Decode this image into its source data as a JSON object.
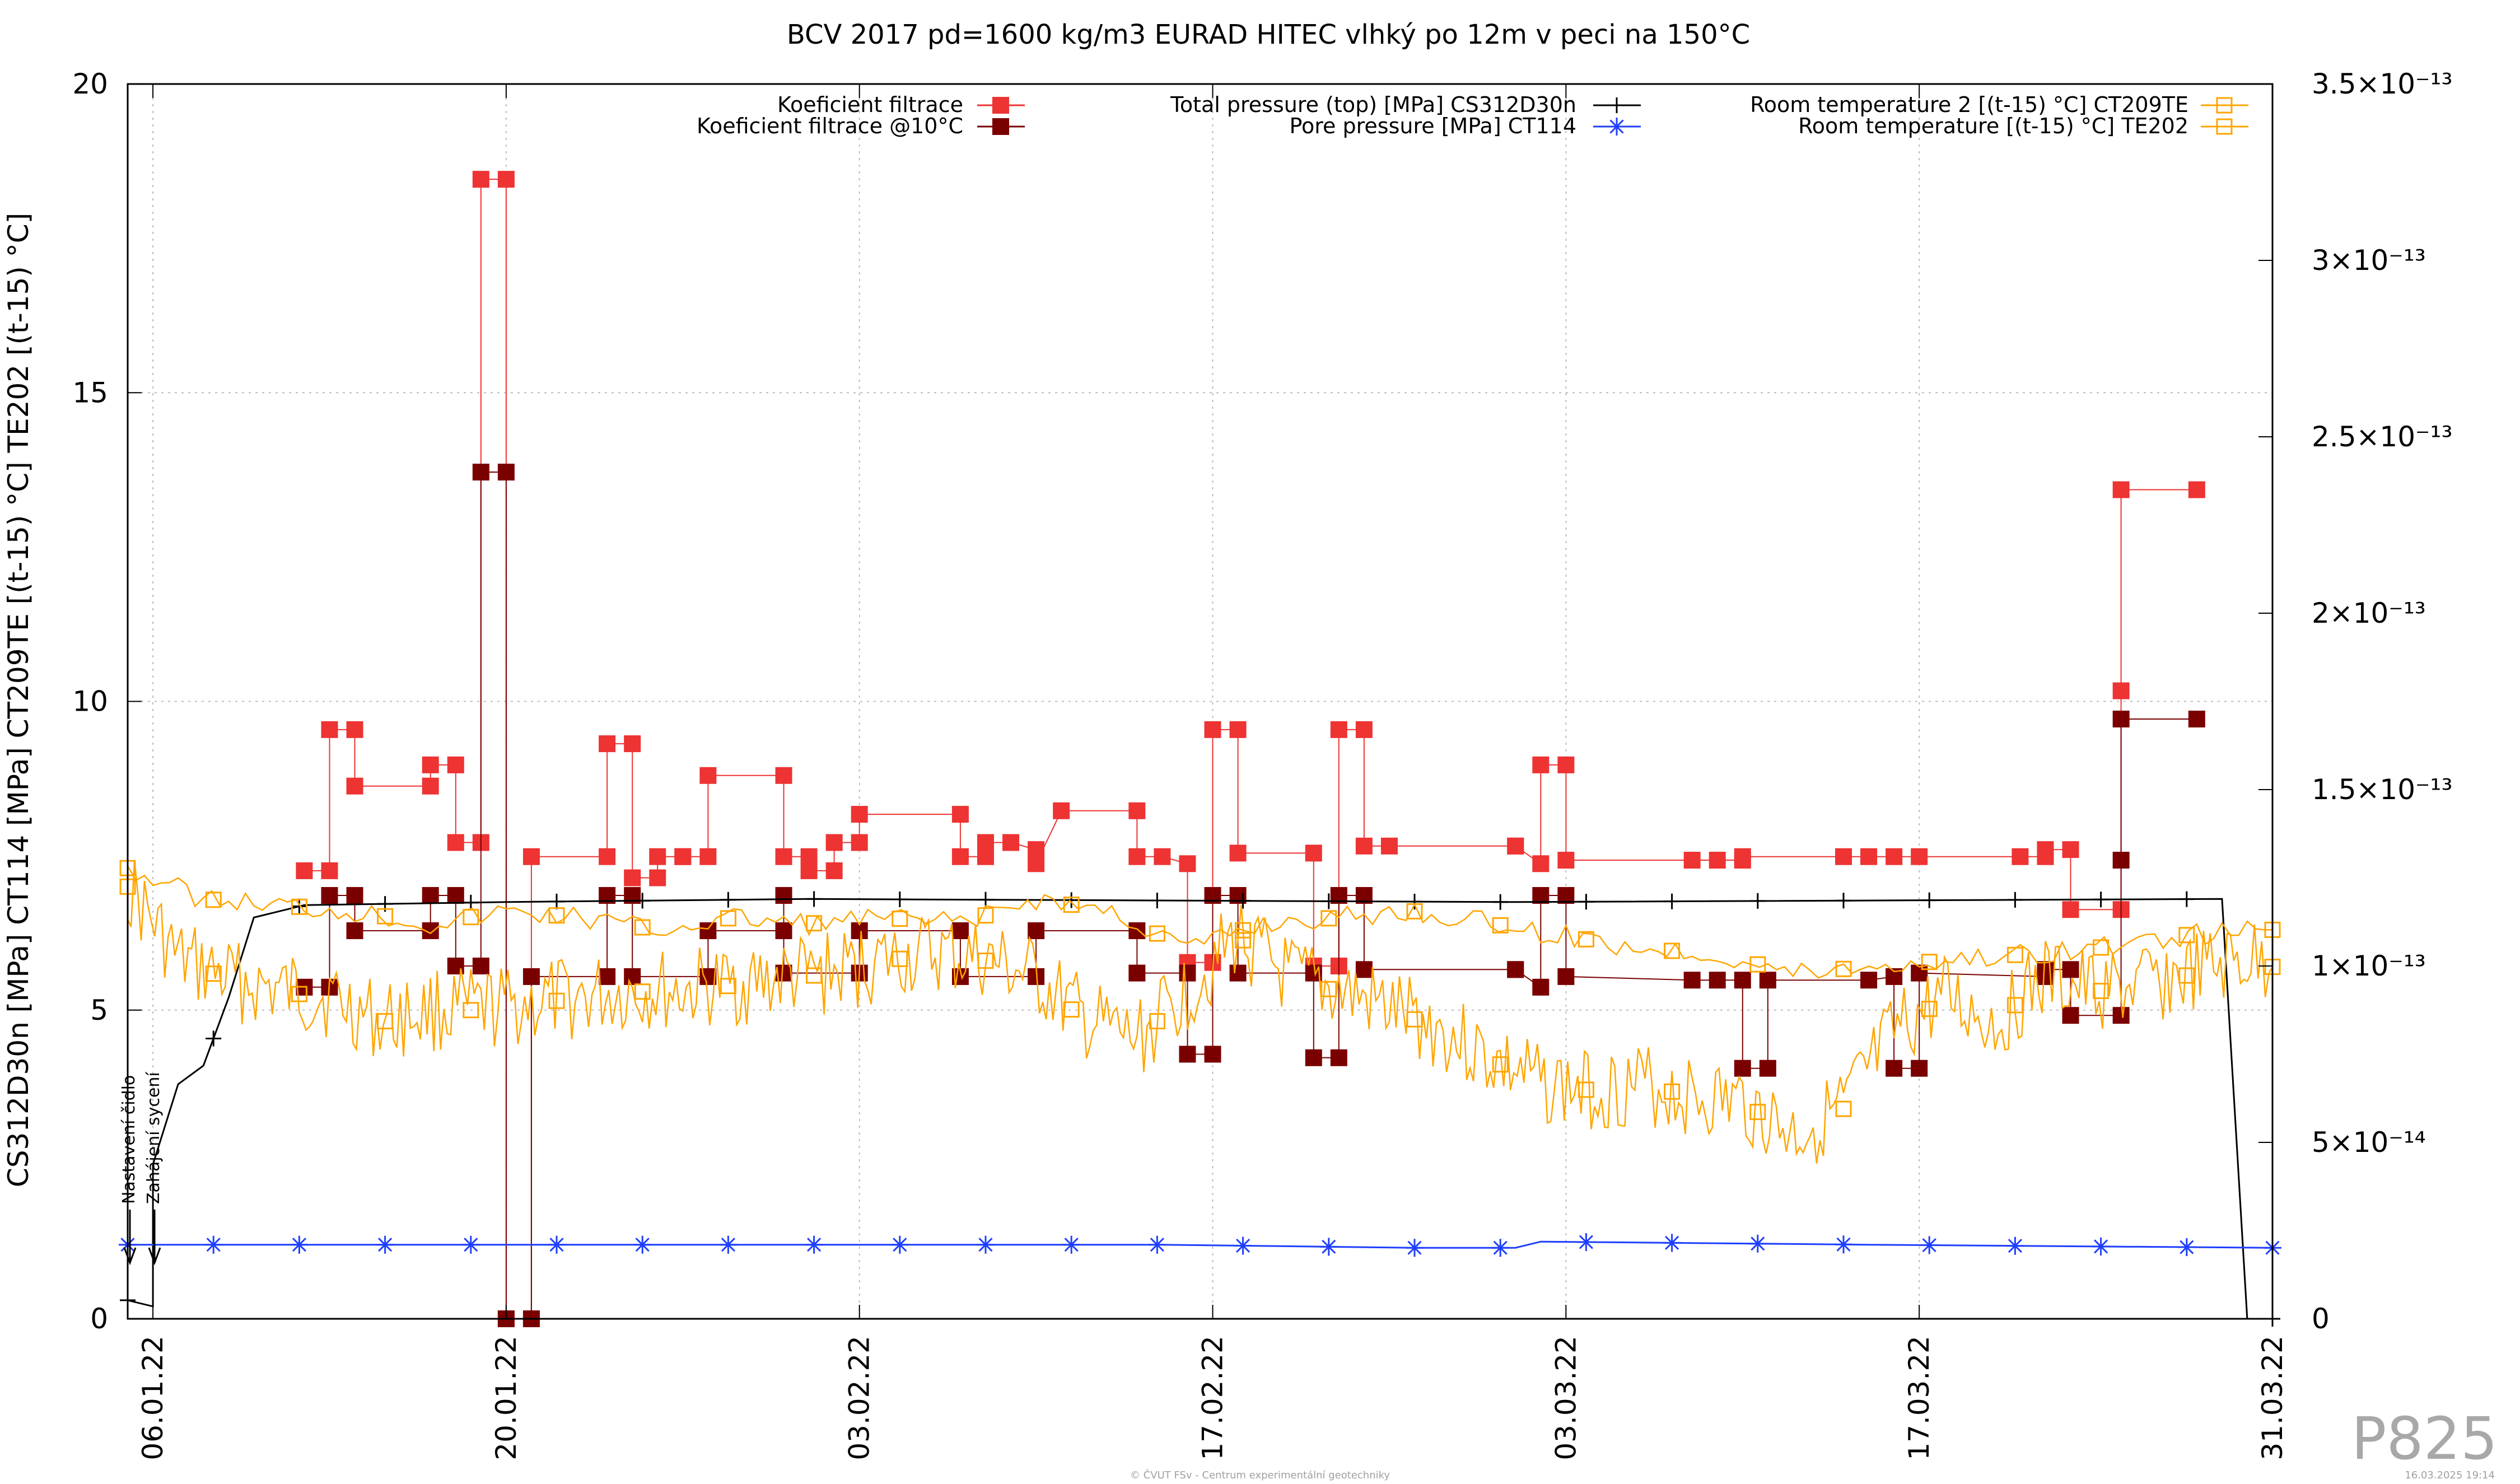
{
  "chart_data": {
    "type": "line",
    "title": "BCV 2017 pd=1600 kg/m3 EURAD HITEC vlhký po 12m v peci na 150°C",
    "ylabel_left": "CS312D30n [MPa] CT114 [MPa] CT209TE [(t-15) °C] TE202 [(t-15) °C]",
    "ylabel_right": "",
    "x_range": [
      "2022-01-05",
      "2022-03-31"
    ],
    "x_ticks": [
      "06.01.22",
      "20.01.22",
      "03.02.22",
      "17.02.22",
      "03.03.22",
      "17.03.22",
      "31.03.22"
    ],
    "y_left_range": [
      0,
      20
    ],
    "y_left_ticks": [
      "0",
      "5",
      "10",
      "15",
      "20"
    ],
    "y_right_range": [
      0,
      3.5e-13
    ],
    "y_right_ticks": [
      "0",
      "5×10⁻¹⁴",
      "1×10⁻¹³",
      "1.5×10⁻¹³",
      "2×10⁻¹³",
      "2.5×10⁻¹³",
      "3×10⁻¹³",
      "3.5×10⁻¹³"
    ],
    "grid": true,
    "legend_placement": "top",
    "annotations": [
      "Nastavení čidlo",
      "Zahájení sycení"
    ],
    "series": [
      {
        "name": "Koeficient filtrace",
        "axis": "right",
        "color": "#ee3333",
        "marker": "filled-square",
        "points": [
          [
            "2022-01-12",
            1.27e-13
          ],
          [
            "2022-01-13",
            1.27e-13
          ],
          [
            "2022-01-13",
            1.67e-13
          ],
          [
            "2022-01-14",
            1.67e-13
          ],
          [
            "2022-01-14",
            1.51e-13
          ],
          [
            "2022-01-17",
            1.51e-13
          ],
          [
            "2022-01-17",
            1.57e-13
          ],
          [
            "2022-01-18",
            1.57e-13
          ],
          [
            "2022-01-18",
            1.35e-13
          ],
          [
            "2022-01-19",
            1.35e-13
          ],
          [
            "2022-01-19",
            3.23e-13
          ],
          [
            "2022-01-20",
            3.23e-13
          ],
          [
            "2022-01-20",
            0
          ],
          [
            "2022-01-21",
            0
          ],
          [
            "2022-01-21",
            1.31e-13
          ],
          [
            "2022-01-24",
            1.31e-13
          ],
          [
            "2022-01-24",
            1.63e-13
          ],
          [
            "2022-01-25",
            1.63e-13
          ],
          [
            "2022-01-25",
            1.25e-13
          ],
          [
            "2022-01-26",
            1.25e-13
          ],
          [
            "2022-01-26",
            1.31e-13
          ],
          [
            "2022-01-27",
            1.31e-13
          ],
          [
            "2022-01-27",
            1.31e-13
          ],
          [
            "2022-01-28",
            1.31e-13
          ],
          [
            "2022-01-28",
            1.54e-13
          ],
          [
            "2022-01-31",
            1.54e-13
          ],
          [
            "2022-01-31",
            1.31e-13
          ],
          [
            "2022-02-01",
            1.31e-13
          ],
          [
            "2022-02-01",
            1.27e-13
          ],
          [
            "2022-02-02",
            1.27e-13
          ],
          [
            "2022-02-02",
            1.35e-13
          ],
          [
            "2022-02-03",
            1.35e-13
          ],
          [
            "2022-02-03",
            1.43e-13
          ],
          [
            "2022-02-07",
            1.43e-13
          ],
          [
            "2022-02-07",
            1.31e-13
          ],
          [
            "2022-02-08",
            1.31e-13
          ],
          [
            "2022-02-08",
            1.35e-13
          ],
          [
            "2022-02-09",
            1.35e-13
          ],
          [
            "2022-02-10",
            1.33e-13
          ],
          [
            "2022-02-10",
            1.29e-13
          ],
          [
            "2022-02-11",
            1.44e-13
          ],
          [
            "2022-02-14",
            1.44e-13
          ],
          [
            "2022-02-14",
            1.31e-13
          ],
          [
            "2022-02-15",
            1.31e-13
          ],
          [
            "2022-02-16",
            1.29e-13
          ],
          [
            "2022-02-16",
            1.01e-13
          ],
          [
            "2022-02-17",
            1.01e-13
          ],
          [
            "2022-02-17",
            1.67e-13
          ],
          [
            "2022-02-18",
            1.67e-13
          ],
          [
            "2022-02-18",
            1.32e-13
          ],
          [
            "2022-02-21",
            1.32e-13
          ],
          [
            "2022-02-21",
            1e-13
          ],
          [
            "2022-02-22",
            1e-13
          ],
          [
            "2022-02-22",
            1.67e-13
          ],
          [
            "2022-02-23",
            1.67e-13
          ],
          [
            "2022-02-23",
            1.34e-13
          ],
          [
            "2022-02-24",
            1.34e-13
          ],
          [
            "2022-03-01",
            1.34e-13
          ],
          [
            "2022-03-01",
            1.34e-13
          ],
          [
            "2022-03-02",
            1.29e-13
          ],
          [
            "2022-03-02",
            1.57e-13
          ],
          [
            "2022-03-03",
            1.57e-13
          ],
          [
            "2022-03-03",
            1.3e-13
          ],
          [
            "2022-03-08",
            1.3e-13
          ],
          [
            "2022-03-09",
            1.3e-13
          ],
          [
            "2022-03-10",
            1.3e-13
          ],
          [
            "2022-03-10",
            1.31e-13
          ],
          [
            "2022-03-14",
            1.31e-13
          ],
          [
            "2022-03-15",
            1.31e-13
          ],
          [
            "2022-03-16",
            1.31e-13
          ],
          [
            "2022-03-17",
            1.31e-13
          ],
          [
            "2022-03-21",
            1.31e-13
          ],
          [
            "2022-03-22",
            1.31e-13
          ],
          [
            "2022-03-22",
            1.33e-13
          ],
          [
            "2022-03-23",
            1.33e-13
          ],
          [
            "2022-03-23",
            1.16e-13
          ],
          [
            "2022-03-25",
            1.16e-13
          ],
          [
            "2022-03-25",
            1.78e-13
          ],
          [
            "2022-03-25",
            2.35e-13
          ],
          [
            "2022-03-28",
            2.35e-13
          ]
        ]
      },
      {
        "name": "Koeficient filtrace @10°C",
        "axis": "right",
        "color": "#7a0000",
        "marker": "filled-square",
        "points": [
          [
            "2022-01-12",
            9.4e-14
          ],
          [
            "2022-01-13",
            9.4e-14
          ],
          [
            "2022-01-13",
            1.2e-13
          ],
          [
            "2022-01-14",
            1.2e-13
          ],
          [
            "2022-01-14",
            1.1e-13
          ],
          [
            "2022-01-17",
            1.1e-13
          ],
          [
            "2022-01-17",
            1.2e-13
          ],
          [
            "2022-01-18",
            1.2e-13
          ],
          [
            "2022-01-18",
            1e-13
          ],
          [
            "2022-01-19",
            1e-13
          ],
          [
            "2022-01-19",
            2.4e-13
          ],
          [
            "2022-01-20",
            2.4e-13
          ],
          [
            "2022-01-20",
            0
          ],
          [
            "2022-01-21",
            0
          ],
          [
            "2022-01-21",
            9.7e-14
          ],
          [
            "2022-01-24",
            9.7e-14
          ],
          [
            "2022-01-24",
            1.2e-13
          ],
          [
            "2022-01-25",
            1.2e-13
          ],
          [
            "2022-01-25",
            9.7e-14
          ],
          [
            "2022-01-28",
            9.7e-14
          ],
          [
            "2022-01-28",
            1.1e-13
          ],
          [
            "2022-01-31",
            1.1e-13
          ],
          [
            "2022-01-31",
            1.2e-13
          ],
          [
            "2022-01-31",
            9.8e-14
          ],
          [
            "2022-02-03",
            9.8e-14
          ],
          [
            "2022-02-03",
            1.1e-13
          ],
          [
            "2022-02-07",
            1.1e-13
          ],
          [
            "2022-02-07",
            9.7e-14
          ],
          [
            "2022-02-10",
            9.7e-14
          ],
          [
            "2022-02-10",
            1.1e-13
          ],
          [
            "2022-02-14",
            1.1e-13
          ],
          [
            "2022-02-14",
            9.8e-14
          ],
          [
            "2022-02-16",
            9.8e-14
          ],
          [
            "2022-02-16",
            7.5e-14
          ],
          [
            "2022-02-17",
            7.5e-14
          ],
          [
            "2022-02-17",
            1.2e-13
          ],
          [
            "2022-02-18",
            1.2e-13
          ],
          [
            "2022-02-18",
            9.8e-14
          ],
          [
            "2022-02-21",
            9.8e-14
          ],
          [
            "2022-02-21",
            7.4e-14
          ],
          [
            "2022-02-22",
            7.4e-14
          ],
          [
            "2022-02-22",
            1.2e-13
          ],
          [
            "2022-02-23",
            1.2e-13
          ],
          [
            "2022-02-23",
            9.9e-14
          ],
          [
            "2022-03-01",
            9.9e-14
          ],
          [
            "2022-03-01",
            9.9e-14
          ],
          [
            "2022-03-02",
            9.4e-14
          ],
          [
            "2022-03-02",
            1.2e-13
          ],
          [
            "2022-03-03",
            1.2e-13
          ],
          [
            "2022-03-03",
            9.7e-14
          ],
          [
            "2022-03-08",
            9.6e-14
          ],
          [
            "2022-03-09",
            9.6e-14
          ],
          [
            "2022-03-10",
            9.6e-14
          ],
          [
            "2022-03-10",
            7.1e-14
          ],
          [
            "2022-03-11",
            7.1e-14
          ],
          [
            "2022-03-11",
            9.6e-14
          ],
          [
            "2022-03-15",
            9.6e-14
          ],
          [
            "2022-03-16",
            9.7e-14
          ],
          [
            "2022-03-16",
            7.1e-14
          ],
          [
            "2022-03-17",
            7.1e-14
          ],
          [
            "2022-03-17",
            9.8e-14
          ],
          [
            "2022-03-22",
            9.7e-14
          ],
          [
            "2022-03-22",
            9.9e-14
          ],
          [
            "2022-03-23",
            9.9e-14
          ],
          [
            "2022-03-23",
            8.6e-14
          ],
          [
            "2022-03-25",
            8.6e-14
          ],
          [
            "2022-03-25",
            1.3e-13
          ],
          [
            "2022-03-25",
            1.7e-13
          ],
          [
            "2022-03-28",
            1.7e-13
          ]
        ]
      },
      {
        "name": "Total pressure (top) [MPa] CS312D30n",
        "axis": "left",
        "color": "#000000",
        "marker": "plus",
        "points": [
          [
            "2022-01-05",
            0.3
          ],
          [
            "2022-01-06",
            0.2
          ],
          [
            "2022-01-06",
            2.5
          ],
          [
            "2022-01-07",
            3.8
          ],
          [
            "2022-01-08",
            4.1
          ],
          [
            "2022-01-09",
            5.2
          ],
          [
            "2022-01-10",
            6.5
          ],
          [
            "2022-01-12",
            6.7
          ],
          [
            "2022-01-20",
            6.75
          ],
          [
            "2022-02-01",
            6.8
          ],
          [
            "2022-03-01",
            6.75
          ],
          [
            "2022-03-29",
            6.8
          ],
          [
            "2022-03-30",
            0.0
          ],
          [
            "2022-03-31",
            0.0
          ]
        ]
      },
      {
        "name": "Pore pressure [MPa] CT114",
        "axis": "left",
        "color": "#1f3fff",
        "marker": "asterisk",
        "points": [
          [
            "2022-01-05",
            1.2
          ],
          [
            "2022-01-15",
            1.2
          ],
          [
            "2022-01-25",
            1.2
          ],
          [
            "2022-02-05",
            1.2
          ],
          [
            "2022-02-15",
            1.2
          ],
          [
            "2022-02-25",
            1.15
          ],
          [
            "2022-03-01",
            1.15
          ],
          [
            "2022-03-02",
            1.25
          ],
          [
            "2022-03-15",
            1.2
          ],
          [
            "2022-03-31",
            1.15
          ]
        ]
      },
      {
        "name": "Room temperature 2 [(t-15) °C] CT209TE",
        "axis": "left",
        "color": "#ffa500",
        "marker": "open-square",
        "points": [
          [
            "2022-01-05",
            7.3
          ],
          [
            "2022-01-08",
            6.8
          ],
          [
            "2022-01-11",
            6.7
          ],
          [
            "2022-01-14",
            6.6
          ],
          [
            "2022-01-17",
            6.4
          ],
          [
            "2022-01-20",
            6.6
          ],
          [
            "2022-01-23",
            6.5
          ],
          [
            "2022-01-26",
            6.3
          ],
          [
            "2022-01-29",
            6.5
          ],
          [
            "2022-02-01",
            6.4
          ],
          [
            "2022-02-04",
            6.5
          ],
          [
            "2022-02-07",
            6.4
          ],
          [
            "2022-02-10",
            6.8
          ],
          [
            "2022-02-13",
            6.6
          ],
          [
            "2022-02-16",
            6.0
          ],
          [
            "2022-02-19",
            6.4
          ],
          [
            "2022-02-22",
            6.5
          ],
          [
            "2022-02-25",
            6.6
          ],
          [
            "2022-02-28",
            6.4
          ],
          [
            "2022-03-03",
            6.2
          ],
          [
            "2022-03-06",
            6.0
          ],
          [
            "2022-03-09",
            5.9
          ],
          [
            "2022-03-12",
            5.6
          ],
          [
            "2022-03-15",
            5.7
          ],
          [
            "2022-03-18",
            5.8
          ],
          [
            "2022-03-21",
            5.9
          ],
          [
            "2022-03-24",
            6.0
          ],
          [
            "2022-03-27",
            6.2
          ],
          [
            "2022-03-31",
            6.3
          ]
        ]
      },
      {
        "name": "Room temperature [(t-15) °C] TE202",
        "axis": "left",
        "color": "#ffa500",
        "marker": "open-square",
        "points": [
          [
            "2022-01-05",
            7.0
          ],
          [
            "2022-01-07",
            5.8
          ],
          [
            "2022-01-09",
            5.5
          ],
          [
            "2022-01-11",
            5.3
          ],
          [
            "2022-01-13",
            5.2
          ],
          [
            "2022-01-15",
            4.8
          ],
          [
            "2022-01-17",
            5.0
          ],
          [
            "2022-01-19",
            5.0
          ],
          [
            "2022-01-21",
            5.1
          ],
          [
            "2022-01-23",
            5.2
          ],
          [
            "2022-01-25",
            5.3
          ],
          [
            "2022-01-27",
            5.3
          ],
          [
            "2022-01-29",
            5.4
          ],
          [
            "2022-01-31",
            5.5
          ],
          [
            "2022-02-02",
            5.6
          ],
          [
            "2022-02-04",
            5.8
          ],
          [
            "2022-02-06",
            5.9
          ],
          [
            "2022-02-08",
            5.8
          ],
          [
            "2022-02-10",
            5.5
          ],
          [
            "2022-02-12",
            4.8
          ],
          [
            "2022-02-14",
            4.5
          ],
          [
            "2022-02-16",
            5.3
          ],
          [
            "2022-02-18",
            6.2
          ],
          [
            "2022-02-20",
            5.5
          ],
          [
            "2022-02-22",
            5.3
          ],
          [
            "2022-02-24",
            5.0
          ],
          [
            "2022-02-26",
            4.7
          ],
          [
            "2022-02-28",
            4.2
          ],
          [
            "2022-03-02",
            3.8
          ],
          [
            "2022-03-04",
            3.7
          ],
          [
            "2022-03-06",
            3.8
          ],
          [
            "2022-03-08",
            3.6
          ],
          [
            "2022-03-10",
            3.5
          ],
          [
            "2022-03-12",
            3.0
          ],
          [
            "2022-03-14",
            3.4
          ],
          [
            "2022-03-16",
            4.6
          ],
          [
            "2022-03-18",
            5.2
          ],
          [
            "2022-03-20",
            4.8
          ],
          [
            "2022-03-22",
            5.5
          ],
          [
            "2022-03-24",
            5.3
          ],
          [
            "2022-03-26",
            5.4
          ],
          [
            "2022-03-28",
            5.6
          ],
          [
            "2022-03-30",
            5.8
          ],
          [
            "2022-03-31",
            5.7
          ]
        ]
      }
    ]
  },
  "watermark": "P825",
  "footer_left": "© ČVUT FSv - Centrum experimentální geotechniky",
  "footer_right": "16.03.2025 19:14"
}
